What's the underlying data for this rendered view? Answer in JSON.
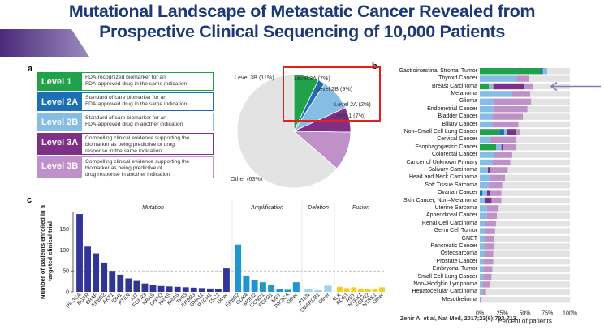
{
  "title": {
    "line1": "Mutational Landscape of Metastatic Cancer Revealed from",
    "line2": "Prospective Clinical Sequencing of 10,000 Patients"
  },
  "panels": {
    "a": "a",
    "b": "b",
    "c": "c"
  },
  "levels": [
    {
      "name": "Level 1",
      "color": "#1fa24a",
      "desc": [
        "FDA-recognized biomarker for an",
        "FDA-approved drug in the same indication"
      ]
    },
    {
      "name": "Level 2A",
      "color": "#1d6fb5",
      "desc": [
        "Standard of care biomarker for an",
        "FDA-approved drug in the same indication"
      ]
    },
    {
      "name": "Level 2B",
      "color": "#86bde4",
      "desc": [
        "Standard of care biomarker for an",
        "FDA-approved drug in another indication"
      ]
    },
    {
      "name": "Level 3A",
      "color": "#7f2f86",
      "desc": [
        "Compelling clinical evidence supporting the",
        "biomarker as being predictive of drug",
        "response in the same indication"
      ]
    },
    {
      "name": "Level 3B",
      "color": "#c091c8",
      "desc": [
        "Compelling clinical evidence supporting the",
        "biomarker as being predictive of",
        "drug response in another indication"
      ]
    }
  ],
  "chart_data": [
    {
      "type": "pie",
      "title": "",
      "slices": [
        {
          "label": "Level 1 (7%)",
          "value": 7,
          "color": "#1fa24a"
        },
        {
          "label": "Level 2A (2%)",
          "value": 2,
          "color": "#1d6fb5"
        },
        {
          "label": "Level 2B (9%)",
          "value": 9,
          "color": "#86bde4"
        },
        {
          "label": "Level 3A (7%)",
          "value": 7,
          "color": "#7f2f86"
        },
        {
          "label": "Level 3B (11%)",
          "value": 11,
          "color": "#c091c8"
        },
        {
          "label": "Other (63%)",
          "value": 63,
          "color": "#e3e3e3"
        }
      ]
    },
    {
      "type": "bar",
      "stacked": true,
      "orientation": "horizontal",
      "xlabel": "Percent of patients",
      "xlim": [
        0,
        100
      ],
      "xticks": [
        "0%",
        "25%",
        "50%",
        "75%",
        "100%"
      ],
      "highlight_arrow": "Breast Carcinoma",
      "series_order": [
        "Level 1",
        "Level 2A",
        "Level 2B",
        "Level 3A",
        "Level 3B"
      ],
      "series_colors": [
        "#1fa24a",
        "#1d6fb5",
        "#86bde4",
        "#7f2f86",
        "#c091c8"
      ],
      "rest_color": "#e3e3e3",
      "categories": [
        {
          "name": "Gastrointestinal Stromal Tumor",
          "values": [
            68,
            2,
            5,
            0,
            0
          ]
        },
        {
          "name": "Thyroid Cancer",
          "values": [
            0,
            0,
            41,
            0,
            14
          ]
        },
        {
          "name": "Breast Carcinoma",
          "values": [
            10,
            0,
            5,
            34,
            10
          ]
        },
        {
          "name": "Melanoma",
          "values": [
            0,
            0,
            36,
            0,
            20
          ]
        },
        {
          "name": "Glioma",
          "values": [
            0,
            0,
            15,
            0,
            42
          ]
        },
        {
          "name": "Endometrial Cancer",
          "values": [
            0,
            0,
            15,
            0,
            38
          ]
        },
        {
          "name": "Bladder Cancer",
          "values": [
            0,
            0,
            14,
            0,
            34
          ]
        },
        {
          "name": "Biliary Cancer",
          "values": [
            0,
            0,
            14,
            0,
            29
          ]
        },
        {
          "name": "Non–Small Cell Lung Cancer",
          "values": [
            22,
            5,
            3,
            10,
            5
          ]
        },
        {
          "name": "Cervical Cancer",
          "values": [
            0,
            0,
            12,
            0,
            28
          ]
        },
        {
          "name": "Esophagogastric Cancer",
          "values": [
            18,
            0,
            6,
            2,
            14
          ]
        },
        {
          "name": "Colorectal Cancer",
          "values": [
            0,
            0,
            16,
            0,
            20
          ]
        },
        {
          "name": "Cancer of Unknown Primary",
          "values": [
            0,
            0,
            14,
            0,
            20
          ]
        },
        {
          "name": "Salivary Carcinoma",
          "values": [
            0,
            0,
            9,
            3,
            19
          ]
        },
        {
          "name": "Head and Neck Carcinoma",
          "values": [
            0,
            0,
            11,
            0,
            17
          ]
        },
        {
          "name": "Soft Tissue Sarcoma",
          "values": [
            0,
            0,
            10,
            0,
            15
          ]
        },
        {
          "name": "Ovarian Cancer",
          "values": [
            0,
            3,
            5,
            3,
            13
          ]
        },
        {
          "name": "Skin Cancer, Non–Melanoma",
          "values": [
            0,
            0,
            6,
            7,
            11
          ]
        },
        {
          "name": "Uterine Sarcoma",
          "values": [
            0,
            0,
            8,
            0,
            13
          ]
        },
        {
          "name": "Appendiceal Cancer",
          "values": [
            0,
            0,
            8,
            0,
            11
          ]
        },
        {
          "name": "Renal Cell Carcinoma",
          "values": [
            0,
            0,
            6,
            0,
            12
          ]
        },
        {
          "name": "Germ Cell Tumor",
          "values": [
            0,
            0,
            6,
            0,
            11
          ]
        },
        {
          "name": "GNET",
          "values": [
            0,
            0,
            5,
            0,
            11
          ]
        },
        {
          "name": "Pancreatic Cancer",
          "values": [
            0,
            0,
            5,
            0,
            11
          ]
        },
        {
          "name": "Osteosarcoma",
          "values": [
            0,
            0,
            5,
            0,
            10
          ]
        },
        {
          "name": "Prostate Cancer",
          "values": [
            0,
            0,
            4,
            0,
            11
          ]
        },
        {
          "name": "Embryonal Tumor",
          "values": [
            0,
            0,
            4,
            0,
            10
          ]
        },
        {
          "name": "Small Cell Lung Cancer",
          "values": [
            0,
            0,
            4,
            0,
            9
          ]
        },
        {
          "name": "Non–Hodgkin Lymphoma",
          "values": [
            0,
            0,
            3,
            0,
            8
          ]
        },
        {
          "name": "Hepatocellular Carcinoma",
          "values": [
            0,
            0,
            3,
            0,
            4
          ]
        },
        {
          "name": "Mesothelioma",
          "values": [
            0,
            0,
            0,
            0,
            2
          ]
        }
      ]
    },
    {
      "type": "bar",
      "ylabel": "Number of patients enrolled in a targeted clinical trial",
      "ylim": [
        0,
        190
      ],
      "yticks": [
        0,
        50,
        100,
        150
      ],
      "groups": [
        {
          "name": "Mutation",
          "color": "#303597",
          "categories": [
            "PIK3CA",
            "EGFR",
            "BRAF",
            "ERBB2",
            "AKT1",
            "IDH1",
            "PTEN",
            "KIT",
            "FGFR3",
            "NRAS",
            "GNAQ",
            "HRAS",
            "KRAS",
            "TP53",
            "ERBB3",
            "GNA11",
            "PTCH1",
            "TSC1",
            "Other"
          ],
          "values": [
            186,
            108,
            92,
            70,
            50,
            41,
            32,
            26,
            20,
            17,
            14,
            13,
            12,
            11,
            10,
            9,
            8,
            7,
            56
          ]
        },
        {
          "name": "Amplification",
          "color": "#1f96d2",
          "categories": [
            "ERBB2",
            "CDK4",
            "MDM2",
            "CCND1",
            "FGFR1",
            "MET",
            "PIK3CA",
            "Other"
          ],
          "values": [
            113,
            39,
            28,
            23,
            17,
            7,
            5,
            23
          ]
        },
        {
          "name": "Deletion",
          "color": "#9fd5ee",
          "categories": [
            "PTEN",
            "SMARCB1",
            "Other"
          ],
          "values": [
            6,
            4,
            15
          ]
        },
        {
          "name": "Fusion",
          "color": "#f4cd21",
          "categories": [
            "ALK",
            "ROS1",
            "RET",
            "NTRK1",
            "FGFR2",
            "NTRK1",
            "Other"
          ],
          "values": [
            12,
            9,
            11,
            8,
            6,
            6,
            11
          ]
        }
      ]
    }
  ],
  "citation": "Zehir A. et al, Nat Med, 2017;23(6):703-713."
}
